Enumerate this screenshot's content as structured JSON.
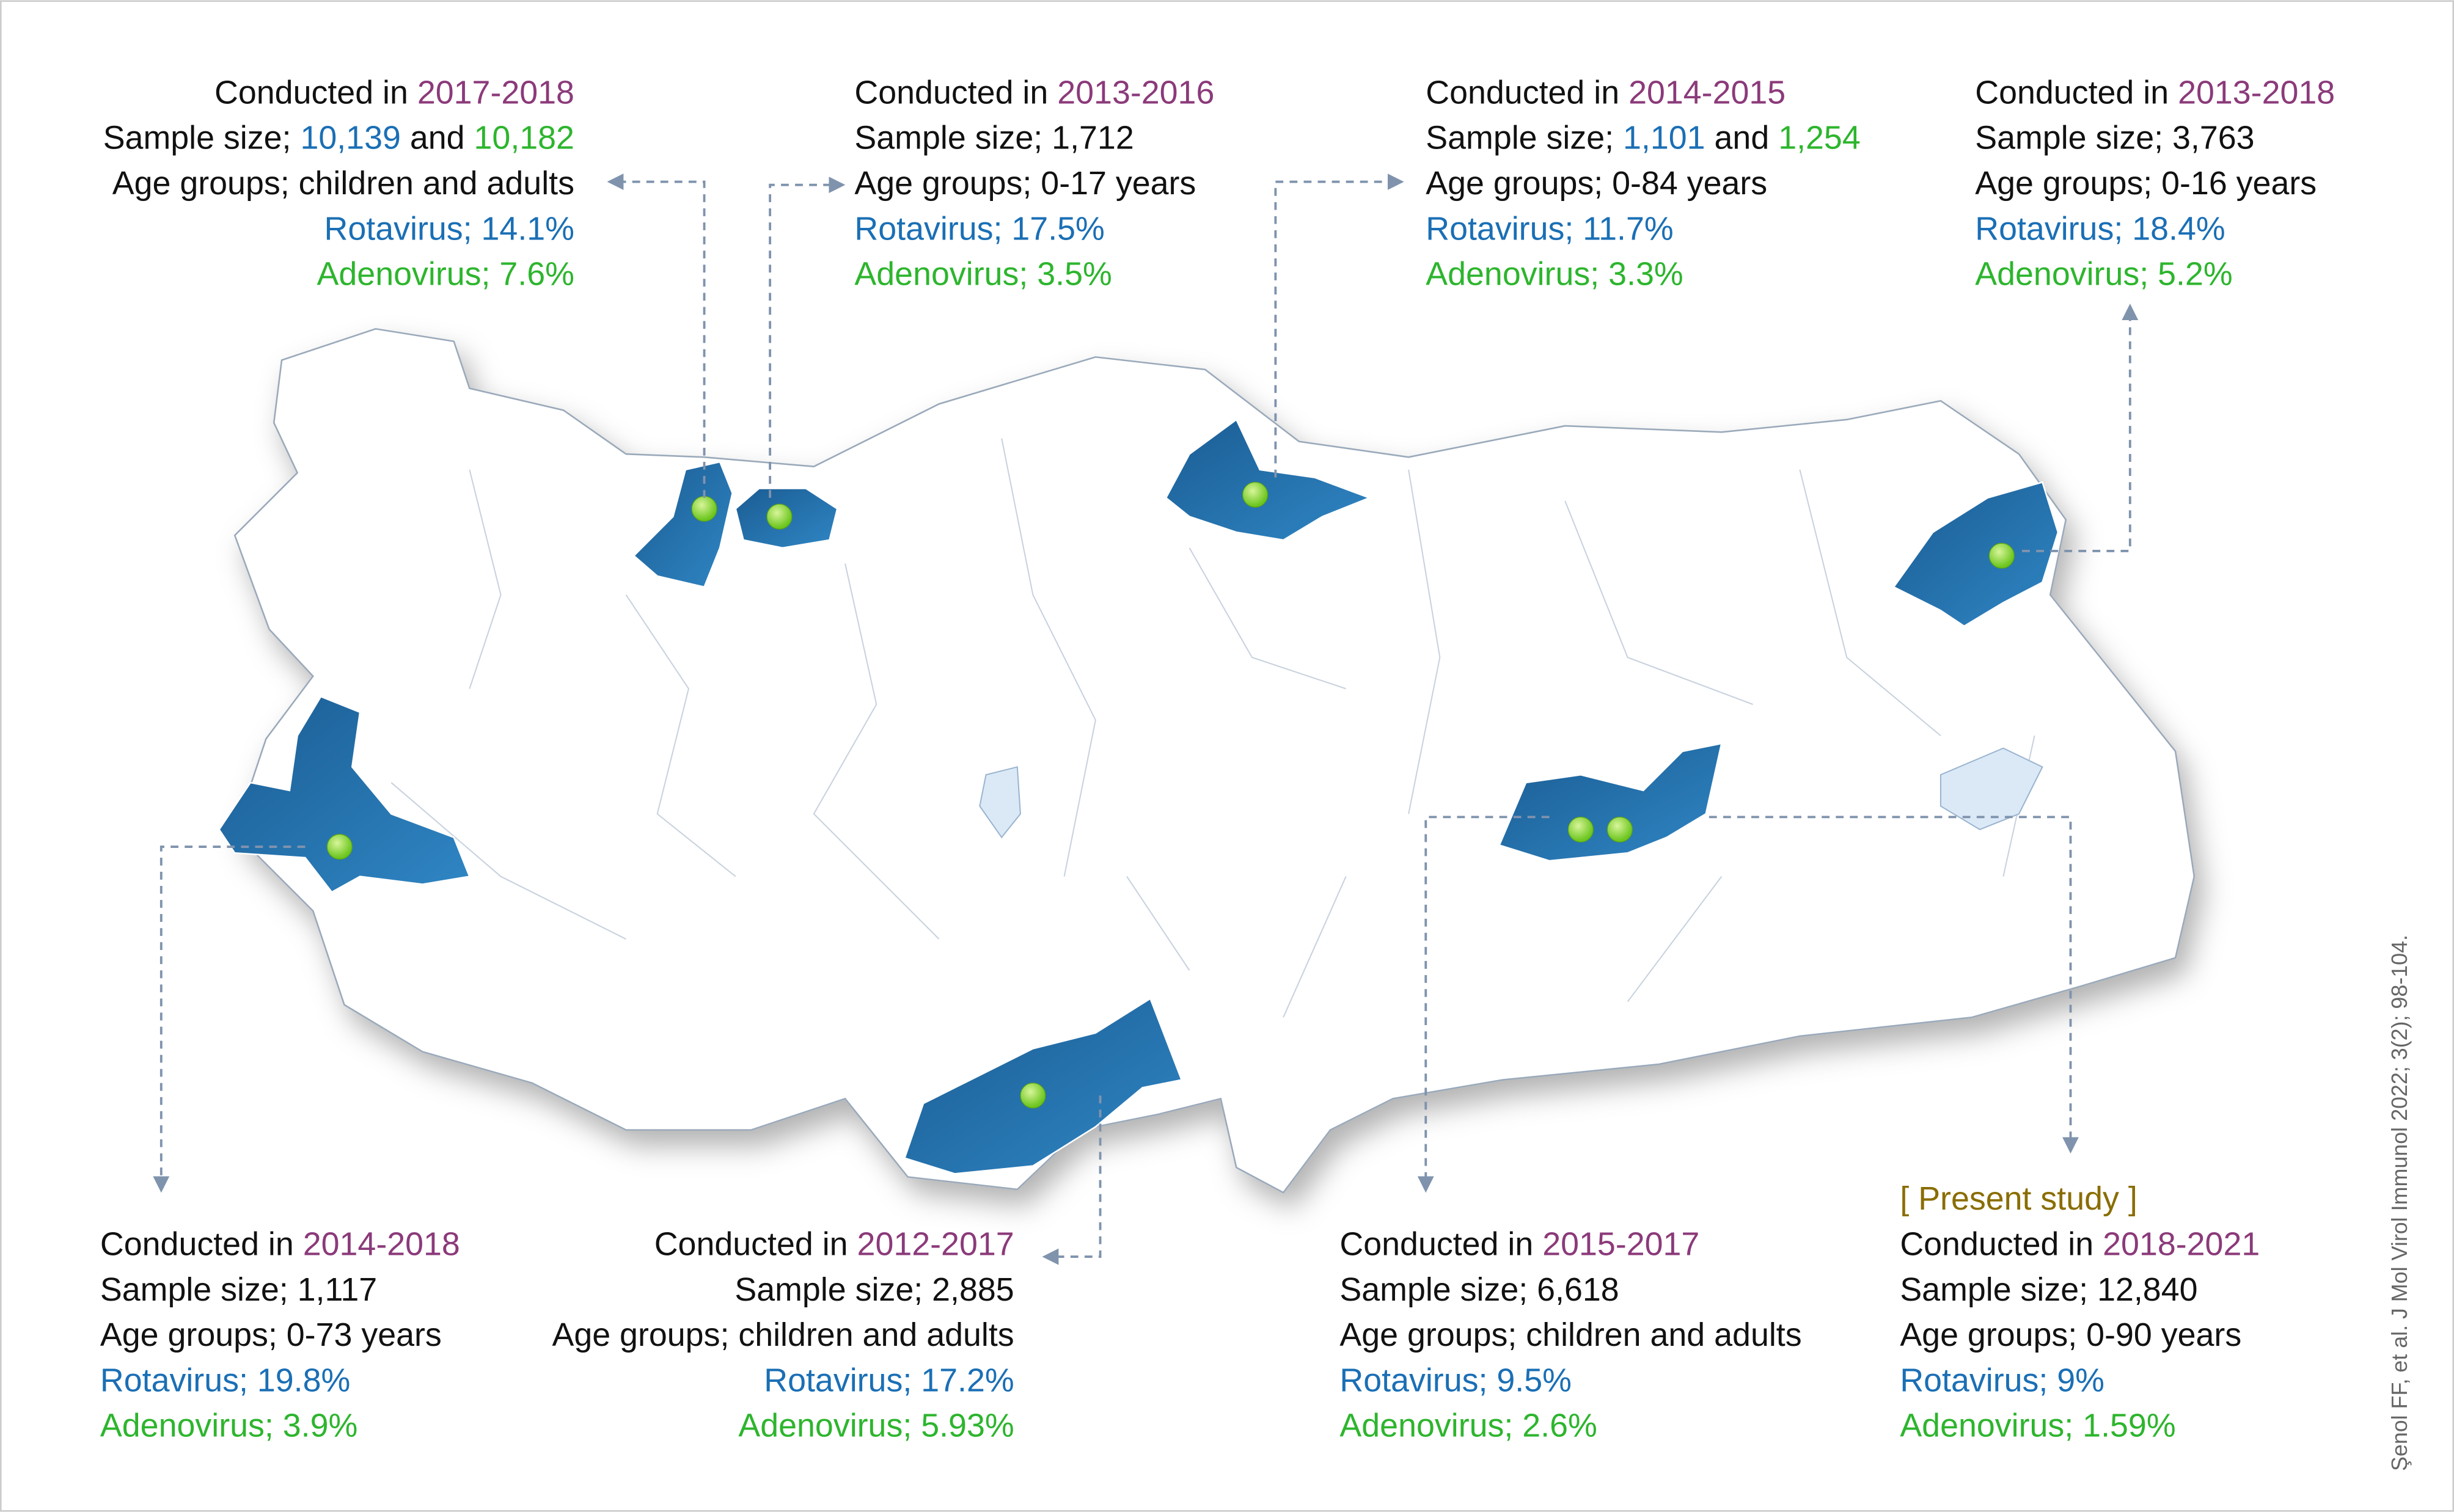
{
  "studies": [
    {
      "conducted": "Conducted in",
      "period": "2017-2018",
      "sample_label": "Sample size;",
      "samples": [
        "10,139",
        "10,182"
      ],
      "sample_joiner": "and",
      "age": "Age groups; children and adults",
      "rotavirus": "Rotavirus; 14.1%",
      "adenovirus": "Adenovirus; 7.6%"
    },
    {
      "conducted": "Conducted in",
      "period": "2013-2016",
      "sample_label": "Sample size;",
      "samples": [
        "1,712"
      ],
      "age": "Age groups; 0-17 years",
      "rotavirus": "Rotavirus; 17.5%",
      "adenovirus": "Adenovirus; 3.5%"
    },
    {
      "conducted": "Conducted in",
      "period": "2014-2015",
      "sample_label": "Sample size;",
      "samples": [
        "1,101",
        "1,254"
      ],
      "sample_joiner": "and",
      "age": "Age groups; 0-84 years",
      "rotavirus": "Rotavirus; 11.7%",
      "adenovirus": "Adenovirus; 3.3%"
    },
    {
      "conducted": "Conducted in",
      "period": "2013-2018",
      "sample_label": "Sample size;",
      "samples": [
        "3,763"
      ],
      "age": "Age groups; 0-16 years",
      "rotavirus": "Rotavirus; 18.4%",
      "adenovirus": "Adenovirus; 5.2%"
    },
    {
      "conducted": "Conducted in",
      "period": "2014-2018",
      "sample_label": "Sample size;",
      "samples": [
        "1,117"
      ],
      "age": "Age groups; 0-73 years",
      "rotavirus": "Rotavirus; 19.8%",
      "adenovirus": "Adenovirus; 3.9%"
    },
    {
      "conducted": "Conducted in",
      "period": "2012-2017",
      "sample_label": "Sample size;",
      "samples": [
        "2,885"
      ],
      "age": "Age groups; children and adults",
      "rotavirus": "Rotavirus; 17.2%",
      "adenovirus": "Adenovirus; 5.93%"
    },
    {
      "conducted": "Conducted in",
      "period": "2015-2017",
      "sample_label": "Sample size;",
      "samples": [
        "6,618"
      ],
      "age": "Age groups; children and adults",
      "rotavirus": "Rotavirus; 9.5%",
      "adenovirus": "Adenovirus; 2.6%"
    },
    {
      "note": "[ Present study ]",
      "conducted": "Conducted in",
      "period": "2018-2021",
      "sample_label": "Sample size;",
      "samples": [
        "12,840"
      ],
      "age": "Age groups; 0-90 years",
      "rotavirus": "Rotavirus; 9%",
      "adenovirus": "Adenovirus; 1.59%"
    }
  ],
  "credit": "Şenol FF, et al. J Mol Virol Immunol 2022; 3(2); 98-104."
}
